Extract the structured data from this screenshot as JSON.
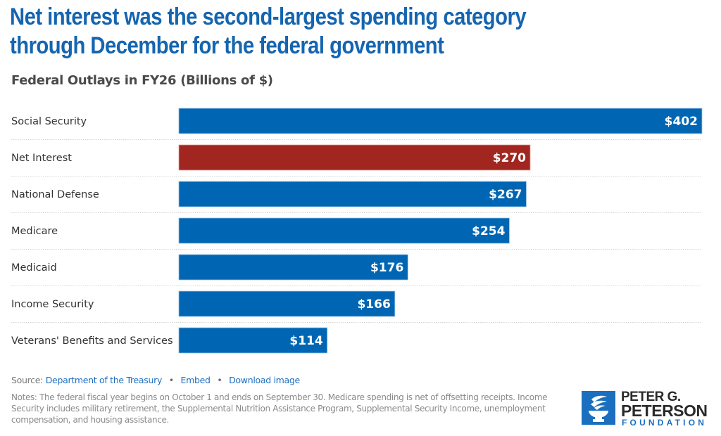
{
  "header": {
    "title": "Net interest was the second-largest spending category through December for the federal government",
    "subtitle": "Federal Outlays in FY26 (Billions of $)"
  },
  "chart_data": {
    "type": "bar",
    "orientation": "horizontal",
    "title": "Federal Outlays in FY26 (Billions of $)",
    "xlabel": "",
    "ylabel": "",
    "categories": [
      "Social Security",
      "Net Interest",
      "National Defense",
      "Medicare",
      "Medicaid",
      "Income Security",
      "Veterans' Benefits and Services"
    ],
    "values": [
      402,
      270,
      267,
      254,
      176,
      166,
      114
    ],
    "value_labels": [
      "$402",
      "$270",
      "$267",
      "$254",
      "$176",
      "$166",
      "$114"
    ],
    "bar_colors": [
      "#0066b3",
      "#a1261f",
      "#0066b3",
      "#0066b3",
      "#0066b3",
      "#0066b3",
      "#0066b3"
    ],
    "xlim": [
      0,
      402
    ],
    "grid": false,
    "legend": "none"
  },
  "footer": {
    "source_prefix": "Source:",
    "source_link": "Department of the Treasury",
    "embed_link": "Embed",
    "download_link": "Download image",
    "separator": "•",
    "notes": "Notes: The federal fiscal year begins on October 1 and ends on September 30. Medicare spending is net of offsetting receipts. Income Security includes military retirement, the Supplemental Nutrition Assistance Program, Supplemental Security Income, unemployment compensation, and housing assistance."
  },
  "logo": {
    "line1": "PETER G.",
    "line2": "PETERSON",
    "line3": "FOUNDATION",
    "icon": "torch-icon"
  },
  "colors": {
    "accent": "#1565b0",
    "highlight": "#a1261f",
    "bar": "#0066b3"
  }
}
